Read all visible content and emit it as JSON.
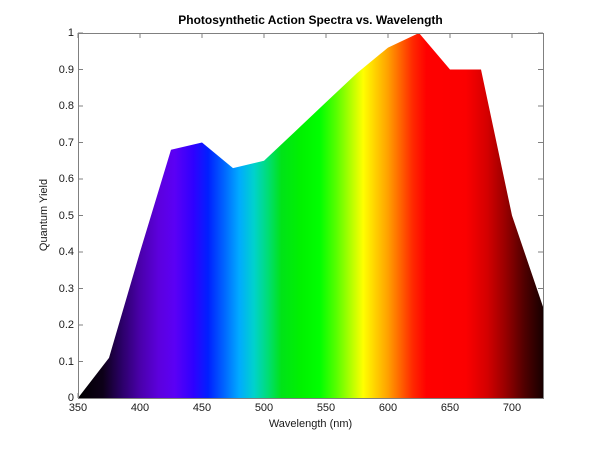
{
  "chart_data": {
    "type": "area",
    "title": "Photosynthetic Action Spectra vs. Wavelength",
    "xlabel": "Wavelength (nm)",
    "ylabel": "Quantum Yield",
    "x": [
      350,
      375,
      400,
      425,
      450,
      475,
      500,
      525,
      550,
      575,
      600,
      625,
      650,
      675,
      700,
      725
    ],
    "y": [
      0,
      0.11,
      0.4,
      0.68,
      0.7,
      0.63,
      0.65,
      0.73,
      0.81,
      0.89,
      0.96,
      1.0,
      0.9,
      0.9,
      0.5,
      0.25
    ],
    "xlim": [
      350,
      725
    ],
    "ylim": [
      0,
      1
    ],
    "x_ticks": [
      350,
      400,
      450,
      500,
      550,
      600,
      650,
      700
    ],
    "x_tick_labels": [
      "350",
      "400",
      "450",
      "500",
      "550",
      "600",
      "650",
      "700"
    ],
    "y_ticks": [
      0,
      0.1,
      0.2,
      0.3,
      0.4,
      0.5,
      0.6,
      0.7,
      0.8,
      0.9,
      1
    ],
    "y_tick_labels": [
      "0",
      "0.1",
      "0.2",
      "0.3",
      "0.4",
      "0.5",
      "0.6",
      "0.7",
      "0.8",
      "0.9",
      "1"
    ],
    "grid": false,
    "legend": "none",
    "fill_style": "visible-spectrum-gradient-by-wavelength",
    "gradient_stops": [
      [
        350,
        "#000000"
      ],
      [
        370,
        "#0d0018"
      ],
      [
        385,
        "#2a0066"
      ],
      [
        400,
        "#4a00aa"
      ],
      [
        415,
        "#5c00dd"
      ],
      [
        428,
        "#5b00f5"
      ],
      [
        443,
        "#2f00ff"
      ],
      [
        455,
        "#0020ff"
      ],
      [
        468,
        "#0066ff"
      ],
      [
        480,
        "#00aaff"
      ],
      [
        492,
        "#00d2cc"
      ],
      [
        503,
        "#00dd77"
      ],
      [
        514,
        "#00e318"
      ],
      [
        530,
        "#00f200"
      ],
      [
        545,
        "#00ff00"
      ],
      [
        558,
        "#55ff00"
      ],
      [
        570,
        "#b2ff00"
      ],
      [
        580,
        "#ffff00"
      ],
      [
        590,
        "#ffd000"
      ],
      [
        600,
        "#ffa000"
      ],
      [
        610,
        "#ff6400"
      ],
      [
        620,
        "#ff2800"
      ],
      [
        631,
        "#ff0000"
      ],
      [
        663,
        "#fb0000"
      ],
      [
        680,
        "#d40000"
      ],
      [
        695,
        "#970000"
      ],
      [
        710,
        "#500000"
      ],
      [
        725,
        "#170000"
      ]
    ],
    "axis_color": "#808080",
    "tick_label_color": "#1a1a1a",
    "title_color": "#000000",
    "background": "#ffffff",
    "tick_direction": "in"
  }
}
